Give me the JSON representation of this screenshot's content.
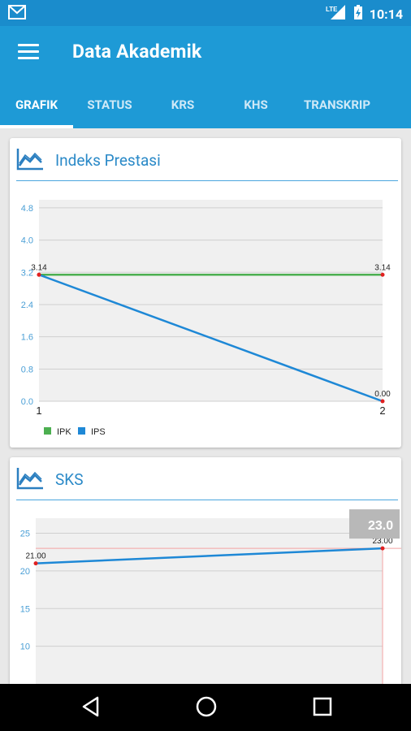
{
  "statusbar": {
    "time": "10:14",
    "network": "LTE"
  },
  "appbar": {
    "title": "Data Akademik"
  },
  "tabs": [
    {
      "label": "GRAFIK",
      "active": true
    },
    {
      "label": "STATUS",
      "active": false
    },
    {
      "label": "KRS",
      "active": false
    },
    {
      "label": "KHS",
      "active": false
    },
    {
      "label": "TRANSKRIP",
      "active": false
    }
  ],
  "cards": {
    "ip": {
      "title": "Indeks Prestasi"
    },
    "sks": {
      "title": "SKS"
    }
  },
  "colors": {
    "primary": "#1e9ad6",
    "statusbar": "#1a8ccc",
    "ipk": "#4caf50",
    "ips": "#1e88d6",
    "grid_bg": "#f0f0f0"
  },
  "chart_data": [
    {
      "type": "line",
      "title": "Indeks Prestasi",
      "x": [
        1,
        2
      ],
      "xticks": [
        "1",
        "2"
      ],
      "ylim": [
        0.0,
        5.0
      ],
      "yticks": [
        "0.0",
        "0.8",
        "1.6",
        "2.4",
        "3.2",
        "4.0",
        "4.8"
      ],
      "series": [
        {
          "name": "IPK",
          "color": "#4caf50",
          "values": [
            3.14,
            3.14
          ],
          "labels": [
            "",
            "3.14"
          ]
        },
        {
          "name": "IPS",
          "color": "#1e88d6",
          "values": [
            3.14,
            0.0
          ],
          "labels": [
            "3.14",
            "0.00"
          ]
        }
      ],
      "legend": "bottom-left",
      "grid": true
    },
    {
      "type": "line",
      "title": "SKS",
      "x": [
        1,
        2
      ],
      "ylim": [
        5,
        27
      ],
      "yticks": [
        "10",
        "15",
        "20",
        "25"
      ],
      "series": [
        {
          "name": "",
          "color": "#1e88d6",
          "values": [
            21.0,
            23.0
          ],
          "labels": [
            "21.00",
            "23.00"
          ]
        }
      ],
      "highlight": {
        "label": "23.0",
        "value": 23.0
      },
      "grid": true
    }
  ]
}
